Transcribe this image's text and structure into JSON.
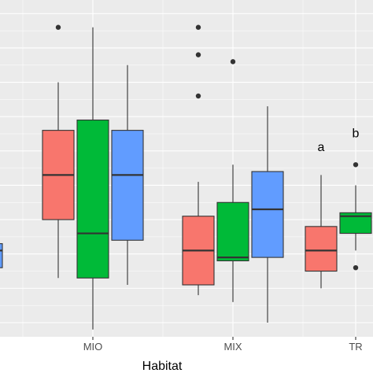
{
  "chart_data": {
    "type": "box",
    "xlabel": "Habitat",
    "categories": [
      "MIO",
      "MIX",
      "TR"
    ],
    "x_tick_labels": [
      "MIO",
      "MIX",
      "TR"
    ],
    "series_colors": [
      "#F8766D",
      "#00BA38",
      "#619CFF"
    ],
    "ylim": [
      0,
      11
    ],
    "grid": "on",
    "boxes": [
      {
        "category": "MIO",
        "series": 0,
        "whisker_low": 1.3,
        "q1": 3.0,
        "median": 4.3,
        "q3": 5.6,
        "whisker_high": 7.0,
        "outliers": [
          8.6
        ]
      },
      {
        "category": "MIO",
        "series": 1,
        "whisker_low": -0.2,
        "q1": 1.3,
        "median": 2.6,
        "q3": 5.9,
        "whisker_high": 8.6,
        "outliers": []
      },
      {
        "category": "MIO",
        "series": 2,
        "whisker_low": 1.1,
        "q1": 2.4,
        "median": 4.3,
        "q3": 5.6,
        "whisker_high": 7.5,
        "outliers": []
      },
      {
        "category": "MIX",
        "series": 0,
        "whisker_low": 0.8,
        "q1": 1.1,
        "median": 2.1,
        "q3": 3.1,
        "whisker_high": 4.1,
        "outliers": [
          6.6,
          7.8,
          8.6
        ]
      },
      {
        "category": "MIX",
        "series": 1,
        "whisker_low": 0.6,
        "q1": 1.8,
        "median": 1.9,
        "q3": 3.5,
        "whisker_high": 4.6,
        "outliers": [
          7.6
        ]
      },
      {
        "category": "MIX",
        "series": 2,
        "whisker_low": 0.0,
        "q1": 1.9,
        "median": 3.3,
        "q3": 4.4,
        "whisker_high": 6.3,
        "outliers": []
      },
      {
        "category": "TR",
        "series": 0,
        "whisker_low": 1.0,
        "q1": 1.5,
        "median": 2.1,
        "q3": 2.8,
        "whisker_high": 4.3,
        "outliers": []
      },
      {
        "category": "TR",
        "series": 1,
        "whisker_low": 2.1,
        "q1": 2.6,
        "median": 3.1,
        "q3": 3.2,
        "whisker_high": 4.0,
        "outliers": [
          4.6,
          1.6
        ]
      },
      {
        "category": "",
        "series": 2,
        "whisker_low": 1.6,
        "q1": 1.6,
        "median": 2.1,
        "q3": 2.3,
        "whisker_high": 2.3,
        "outliers": []
      }
    ],
    "annotations": [
      {
        "text": "a",
        "category": "TR",
        "series": 0,
        "y": 5.0
      },
      {
        "text": "b",
        "category": "TR",
        "series": 1,
        "y": 5.4
      }
    ]
  }
}
